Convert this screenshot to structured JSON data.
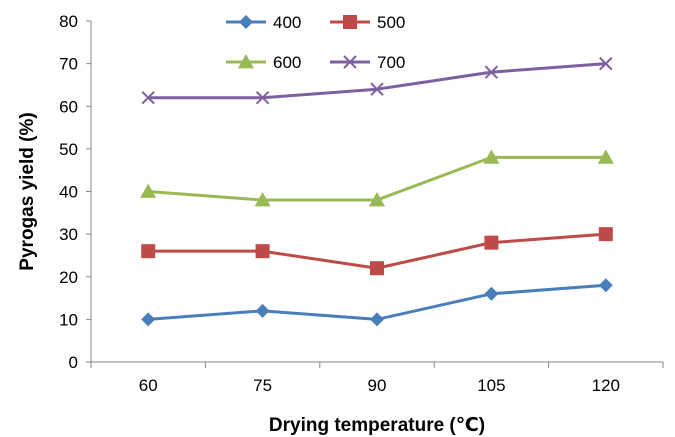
{
  "chart_data": {
    "type": "line",
    "title": "",
    "xlabel": "Drying temperature  (℃)",
    "ylabel": "Pyrogas  yield (%)",
    "categories": [
      "60",
      "75",
      "90",
      "105",
      "120"
    ],
    "ylim": [
      0,
      80
    ],
    "yticks": [
      "0",
      "10",
      "20",
      "30",
      "40",
      "50",
      "60",
      "70",
      "80"
    ],
    "grid": false,
    "legend_position": "top-center",
    "series": [
      {
        "name": "400",
        "values": [
          10,
          12,
          10,
          16,
          18
        ],
        "color": "#4a7ebb",
        "marker": "diamond"
      },
      {
        "name": "500",
        "values": [
          26,
          26,
          22,
          28,
          30
        ],
        "color": "#be4b48",
        "marker": "square"
      },
      {
        "name": "600",
        "values": [
          40,
          38,
          38,
          48,
          48
        ],
        "color": "#98b954",
        "marker": "triangle"
      },
      {
        "name": "700",
        "values": [
          62,
          62,
          64,
          68,
          70
        ],
        "color": "#7d60a0",
        "marker": "x"
      }
    ]
  }
}
